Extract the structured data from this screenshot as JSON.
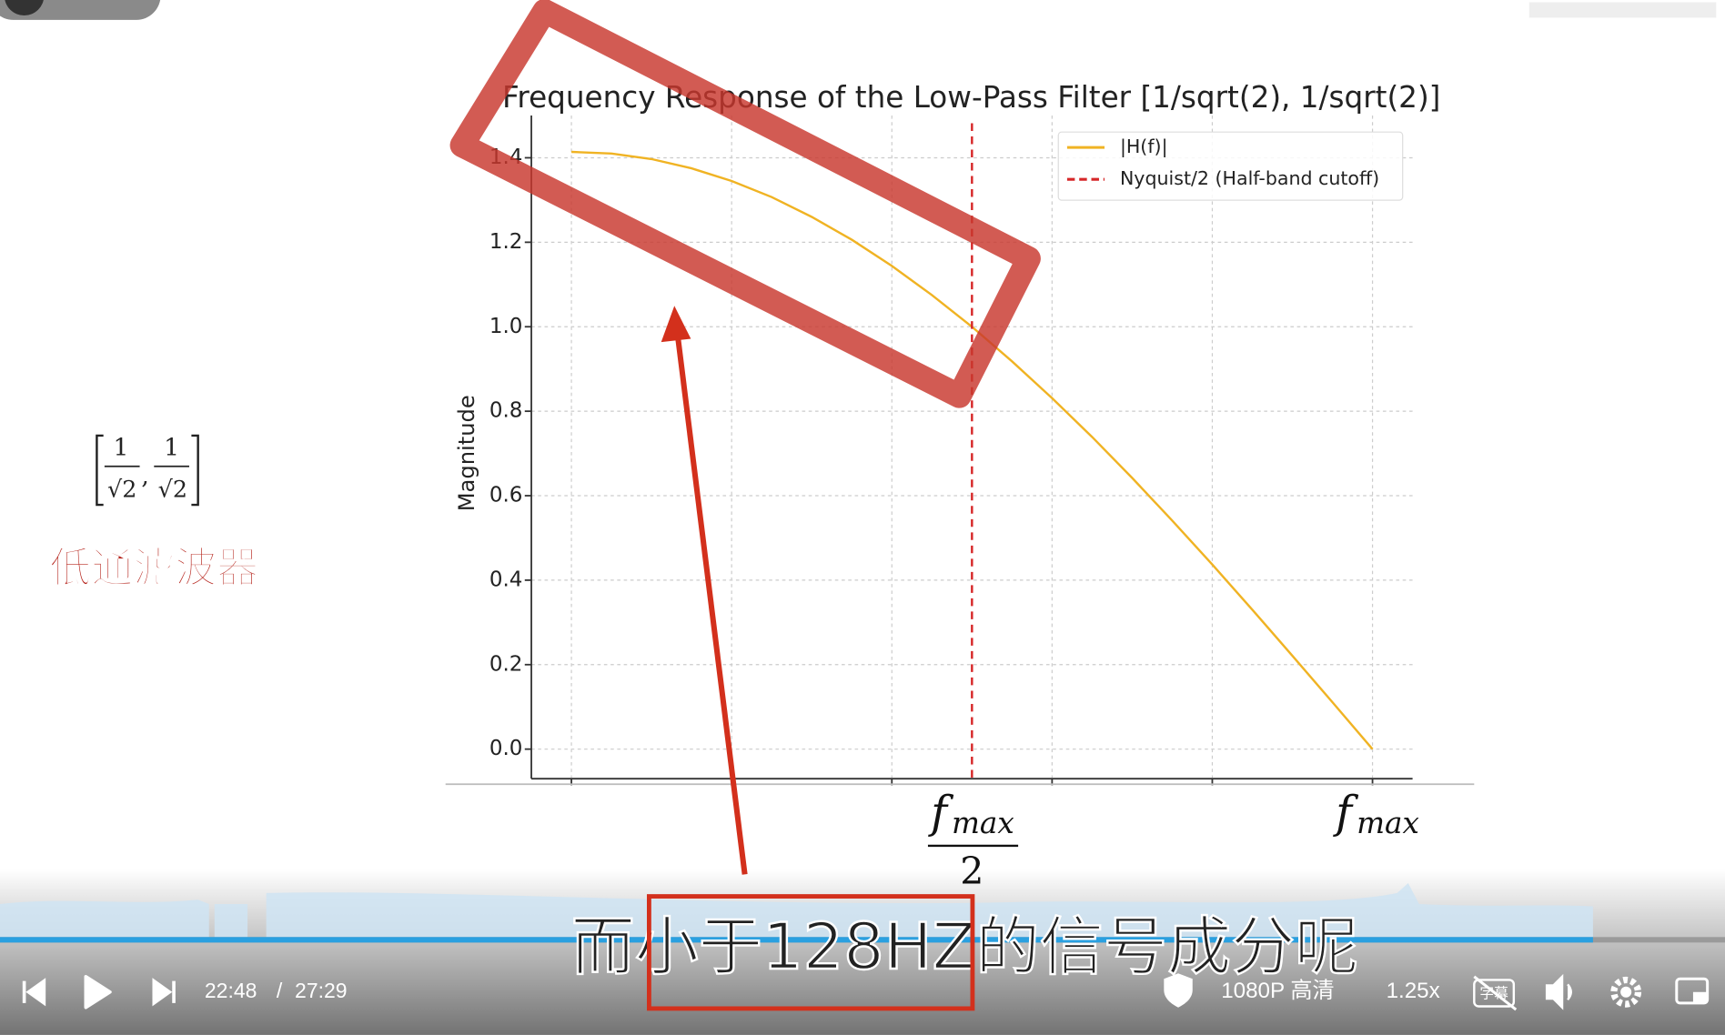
{
  "chart_data": {
    "type": "line",
    "title": "Frequency Response of the Low-Pass Filter [1/sqrt(2), 1/sqrt(2)]",
    "y_label": "Magnitude",
    "x": [
      0,
      0.05,
      0.1,
      0.15,
      0.2,
      0.25,
      0.3,
      0.35,
      0.4,
      0.45,
      0.5,
      0.55,
      0.6,
      0.65,
      0.7,
      0.75,
      0.8,
      0.85,
      0.9,
      0.95,
      1.0
    ],
    "series": [
      {
        "name": "|H(f)|",
        "color": "#f0b323",
        "values": [
          1.414,
          1.41,
          1.397,
          1.375,
          1.345,
          1.307,
          1.26,
          1.206,
          1.144,
          1.075,
          1.0,
          0.918,
          0.831,
          0.739,
          0.642,
          0.541,
          0.437,
          0.33,
          0.221,
          0.111,
          0
        ]
      }
    ],
    "vlines": [
      {
        "name": "Nyquist/2 (Half-band cutoff)",
        "x": 0.5,
        "color": "#d62728"
      }
    ],
    "xlim": [
      -0.05,
      1.05
    ],
    "ylim": [
      -0.07,
      1.5
    ],
    "xticks": [
      0,
      0.2,
      0.4,
      0.6,
      0.8,
      1.0
    ],
    "yticks": [
      {
        "value": 0,
        "label": "0.0"
      },
      0.2,
      0.4,
      0.6,
      0.8,
      {
        "value": 1,
        "label": "1.0"
      },
      1.2,
      1.4
    ],
    "grid": true,
    "legend": "upper right",
    "annotations": [
      {
        "x": 0.5,
        "text": "f",
        "sub": "max",
        "den": "2"
      },
      {
        "x": 1.0,
        "text": "f",
        "sub": "max"
      }
    ]
  },
  "side_note": {
    "formula": [
      "1",
      "√2",
      ",",
      "1",
      "√2"
    ],
    "label": "低通滤波器"
  },
  "subtitle": "而小于128HZ的信号成分呢",
  "player": {
    "current": "22:48",
    "separator": "/",
    "duration": "27:29",
    "quality": "1080P 高清",
    "speed": "1.25x",
    "caption": "字幕"
  }
}
